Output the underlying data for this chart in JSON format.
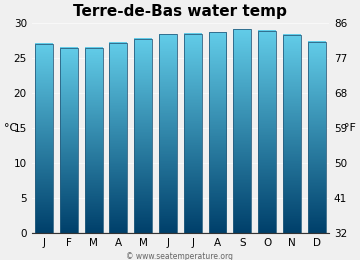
{
  "title": "Terre-de-Bas water temp",
  "months": [
    "J",
    "F",
    "M",
    "A",
    "M",
    "J",
    "J",
    "A",
    "S",
    "O",
    "N",
    "D"
  ],
  "values_c": [
    27.0,
    26.5,
    26.5,
    27.2,
    27.8,
    28.4,
    28.5,
    28.7,
    29.1,
    28.9,
    28.3,
    27.3
  ],
  "ylim_c": [
    0,
    30
  ],
  "yticks_c": [
    0,
    5,
    10,
    15,
    20,
    25,
    30
  ],
  "yticks_f": [
    32,
    41,
    50,
    59,
    68,
    77,
    86
  ],
  "ylabel_left": "°C",
  "ylabel_right": "°F",
  "bar_color_top": "#62cce8",
  "bar_color_bottom": "#00406b",
  "bar_edge_color": "#2a6080",
  "bg_color": "#f0f0f0",
  "plot_bg_color": "#f0f0f0",
  "watermark": "© www.seatemperature.org",
  "title_fontsize": 11,
  "tick_fontsize": 7.5,
  "label_fontsize": 8
}
